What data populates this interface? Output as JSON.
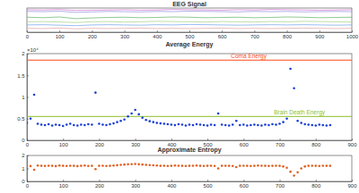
{
  "chart_data": [
    {
      "type": "line",
      "title": "EEG Signal",
      "x": [
        0,
        50,
        100,
        150,
        200,
        250,
        300,
        350,
        400,
        450,
        500,
        550,
        600,
        650,
        700,
        750,
        800,
        850,
        900,
        950,
        1000
      ],
      "xlim": [
        0,
        1000
      ],
      "xticks": [
        0,
        100,
        200,
        300,
        400,
        500,
        600,
        700,
        800,
        900,
        1000
      ],
      "ylim": [
        0,
        10
      ],
      "tick_labels": "x",
      "series": [
        {
          "color": "#d070d0",
          "values": [
            9.3,
            9.2,
            9.4,
            9.0,
            9.1,
            9.2,
            9.3,
            9.1,
            9.2,
            9.4,
            9.3,
            9.2,
            9.1,
            9.3,
            9.2,
            9.4,
            9.3,
            9.2,
            9.1,
            9.2,
            9.3
          ]
        },
        {
          "color": "#9090e0",
          "values": [
            8.6,
            8.5,
            8.7,
            8.2,
            8.4,
            8.6,
            8.5,
            8.4,
            8.6,
            8.5,
            8.7,
            8.6,
            8.5,
            8.4,
            8.6,
            8.5,
            8.6,
            8.4,
            8.5,
            8.6,
            8.5
          ]
        },
        {
          "color": "#60b060",
          "values": [
            6.2,
            6.0,
            6.3,
            5.6,
            5.9,
            6.1,
            6.2,
            6.0,
            6.1,
            6.3,
            6.2,
            6.0,
            6.1,
            6.2,
            6.0,
            6.1,
            6.3,
            6.2,
            6.0,
            6.1,
            6.2
          ]
        },
        {
          "color": "#a0d080",
          "values": [
            4.3,
            4.4,
            4.2,
            4.0,
            4.3,
            4.4,
            4.2,
            4.3,
            4.5,
            4.4,
            4.3,
            4.2,
            4.4,
            4.3,
            4.2,
            4.4,
            4.3,
            4.5,
            4.4,
            4.3,
            4.2
          ]
        },
        {
          "color": "#70a0f0",
          "values": [
            3.0,
            3.1,
            2.9,
            2.7,
            3.0,
            3.1,
            3.0,
            2.9,
            3.1,
            3.0,
            3.2,
            3.1,
            3.0,
            2.9,
            3.0,
            3.1,
            3.0,
            3.1,
            3.0,
            2.9,
            3.0
          ]
        },
        {
          "color": "#e0a0a0",
          "values": [
            1.6,
            1.5,
            1.7,
            1.4,
            1.6,
            1.5,
            1.6,
            1.7,
            1.5,
            1.6,
            1.5,
            1.6,
            1.7,
            1.5,
            1.6,
            1.5,
            1.6,
            1.7,
            1.6,
            1.5,
            1.6
          ]
        }
      ]
    },
    {
      "type": "scatter",
      "title": "Average Energy",
      "y_scale_label": "×10⁴",
      "color": "#1a3fd6",
      "marker": "dot",
      "x": [
        0,
        10,
        20,
        30,
        40,
        50,
        60,
        70,
        80,
        90,
        100,
        110,
        120,
        130,
        140,
        150,
        160,
        170,
        180,
        190,
        200,
        210,
        220,
        230,
        240,
        250,
        260,
        270,
        280,
        290,
        300,
        310,
        320,
        330,
        340,
        350,
        360,
        370,
        380,
        390,
        400,
        410,
        420,
        430,
        440,
        450,
        460,
        470,
        480,
        490,
        500,
        510,
        520,
        530,
        540,
        550,
        560,
        570,
        580,
        590,
        600,
        610,
        620,
        630,
        640,
        650,
        660,
        670,
        680,
        690,
        700,
        710,
        720,
        730,
        740,
        750,
        760,
        770,
        780,
        790,
        800,
        810,
        820,
        830,
        840
      ],
      "values": [
        0.4,
        0.5,
        1.05,
        0.38,
        0.36,
        0.35,
        0.37,
        0.34,
        0.36,
        0.35,
        0.33,
        0.36,
        0.38,
        0.35,
        0.34,
        0.36,
        0.35,
        0.37,
        0.36,
        1.1,
        0.38,
        0.36,
        0.35,
        0.37,
        0.39,
        0.42,
        0.45,
        0.48,
        0.55,
        0.62,
        0.7,
        0.6,
        0.52,
        0.47,
        0.44,
        0.42,
        0.4,
        0.39,
        0.38,
        0.37,
        0.36,
        0.35,
        0.37,
        0.36,
        0.34,
        0.36,
        0.35,
        0.37,
        0.36,
        0.35,
        0.34,
        0.36,
        0.35,
        0.62,
        0.36,
        0.35,
        0.34,
        0.36,
        0.45,
        0.35,
        0.36,
        0.34,
        0.35,
        0.36,
        0.35,
        0.34,
        0.36,
        0.35,
        0.37,
        0.36,
        0.38,
        0.42,
        0.5,
        1.65,
        1.2,
        0.45,
        0.4,
        0.37,
        0.36,
        0.35,
        0.34,
        0.36,
        0.35,
        0.34,
        0.35
      ],
      "xlim": [
        0,
        900
      ],
      "xticks": [
        0,
        100,
        200,
        300,
        400,
        500,
        600,
        700,
        800,
        900
      ],
      "ylim": [
        0,
        2
      ],
      "yticks": [
        0,
        0.5,
        1,
        1.5,
        2
      ],
      "reference_lines": [
        {
          "label": "Coma Energy",
          "y": 1.85,
          "color": "#ff4a1a"
        },
        {
          "label": "Brain Death Energy",
          "y": 0.55,
          "color": "#8cbf2a"
        }
      ]
    },
    {
      "type": "scatter",
      "title": "Approximate Entropy",
      "color": "#e06020",
      "marker": "dot",
      "x": [
        0,
        10,
        20,
        30,
        40,
        50,
        60,
        70,
        80,
        90,
        100,
        110,
        120,
        130,
        140,
        150,
        160,
        170,
        180,
        190,
        200,
        210,
        220,
        230,
        240,
        250,
        260,
        270,
        280,
        290,
        300,
        310,
        320,
        330,
        340,
        350,
        360,
        370,
        380,
        390,
        400,
        410,
        420,
        430,
        440,
        450,
        460,
        470,
        480,
        490,
        500,
        510,
        520,
        530,
        540,
        550,
        560,
        570,
        580,
        590,
        600,
        610,
        620,
        630,
        640,
        650,
        660,
        670,
        680,
        690,
        700,
        710,
        720,
        730,
        740,
        750,
        760,
        770,
        780,
        790,
        800,
        810,
        820,
        830,
        840
      ],
      "values": [
        1.2,
        1.18,
        0.9,
        1.22,
        1.2,
        1.19,
        1.21,
        1.2,
        1.18,
        1.22,
        1.2,
        1.19,
        1.21,
        1.2,
        1.18,
        1.2,
        1.22,
        1.19,
        1.2,
        0.95,
        1.2,
        1.21,
        1.19,
        1.2,
        1.22,
        1.25,
        1.28,
        1.3,
        1.32,
        1.33,
        1.35,
        1.32,
        1.3,
        1.28,
        1.26,
        1.24,
        1.22,
        1.2,
        1.21,
        1.19,
        1.2,
        1.22,
        1.21,
        1.2,
        1.19,
        1.2,
        1.21,
        1.22,
        1.2,
        1.19,
        1.2,
        1.21,
        1.19,
        1.0,
        1.2,
        1.21,
        1.2,
        1.19,
        1.1,
        1.2,
        1.21,
        1.2,
        1.19,
        1.2,
        1.22,
        1.21,
        1.2,
        1.19,
        1.2,
        1.21,
        1.2,
        1.15,
        1.05,
        0.75,
        0.45,
        0.7,
        1.0,
        1.15,
        1.2,
        1.21,
        1.2,
        1.19,
        1.21,
        1.2,
        1.2
      ],
      "xlim": [
        0,
        900
      ],
      "xticks": [
        0,
        100,
        200,
        300,
        400,
        500,
        600,
        700,
        800,
        900
      ],
      "ylim": [
        0,
        2
      ],
      "yticks": [
        0,
        1,
        2
      ]
    }
  ]
}
